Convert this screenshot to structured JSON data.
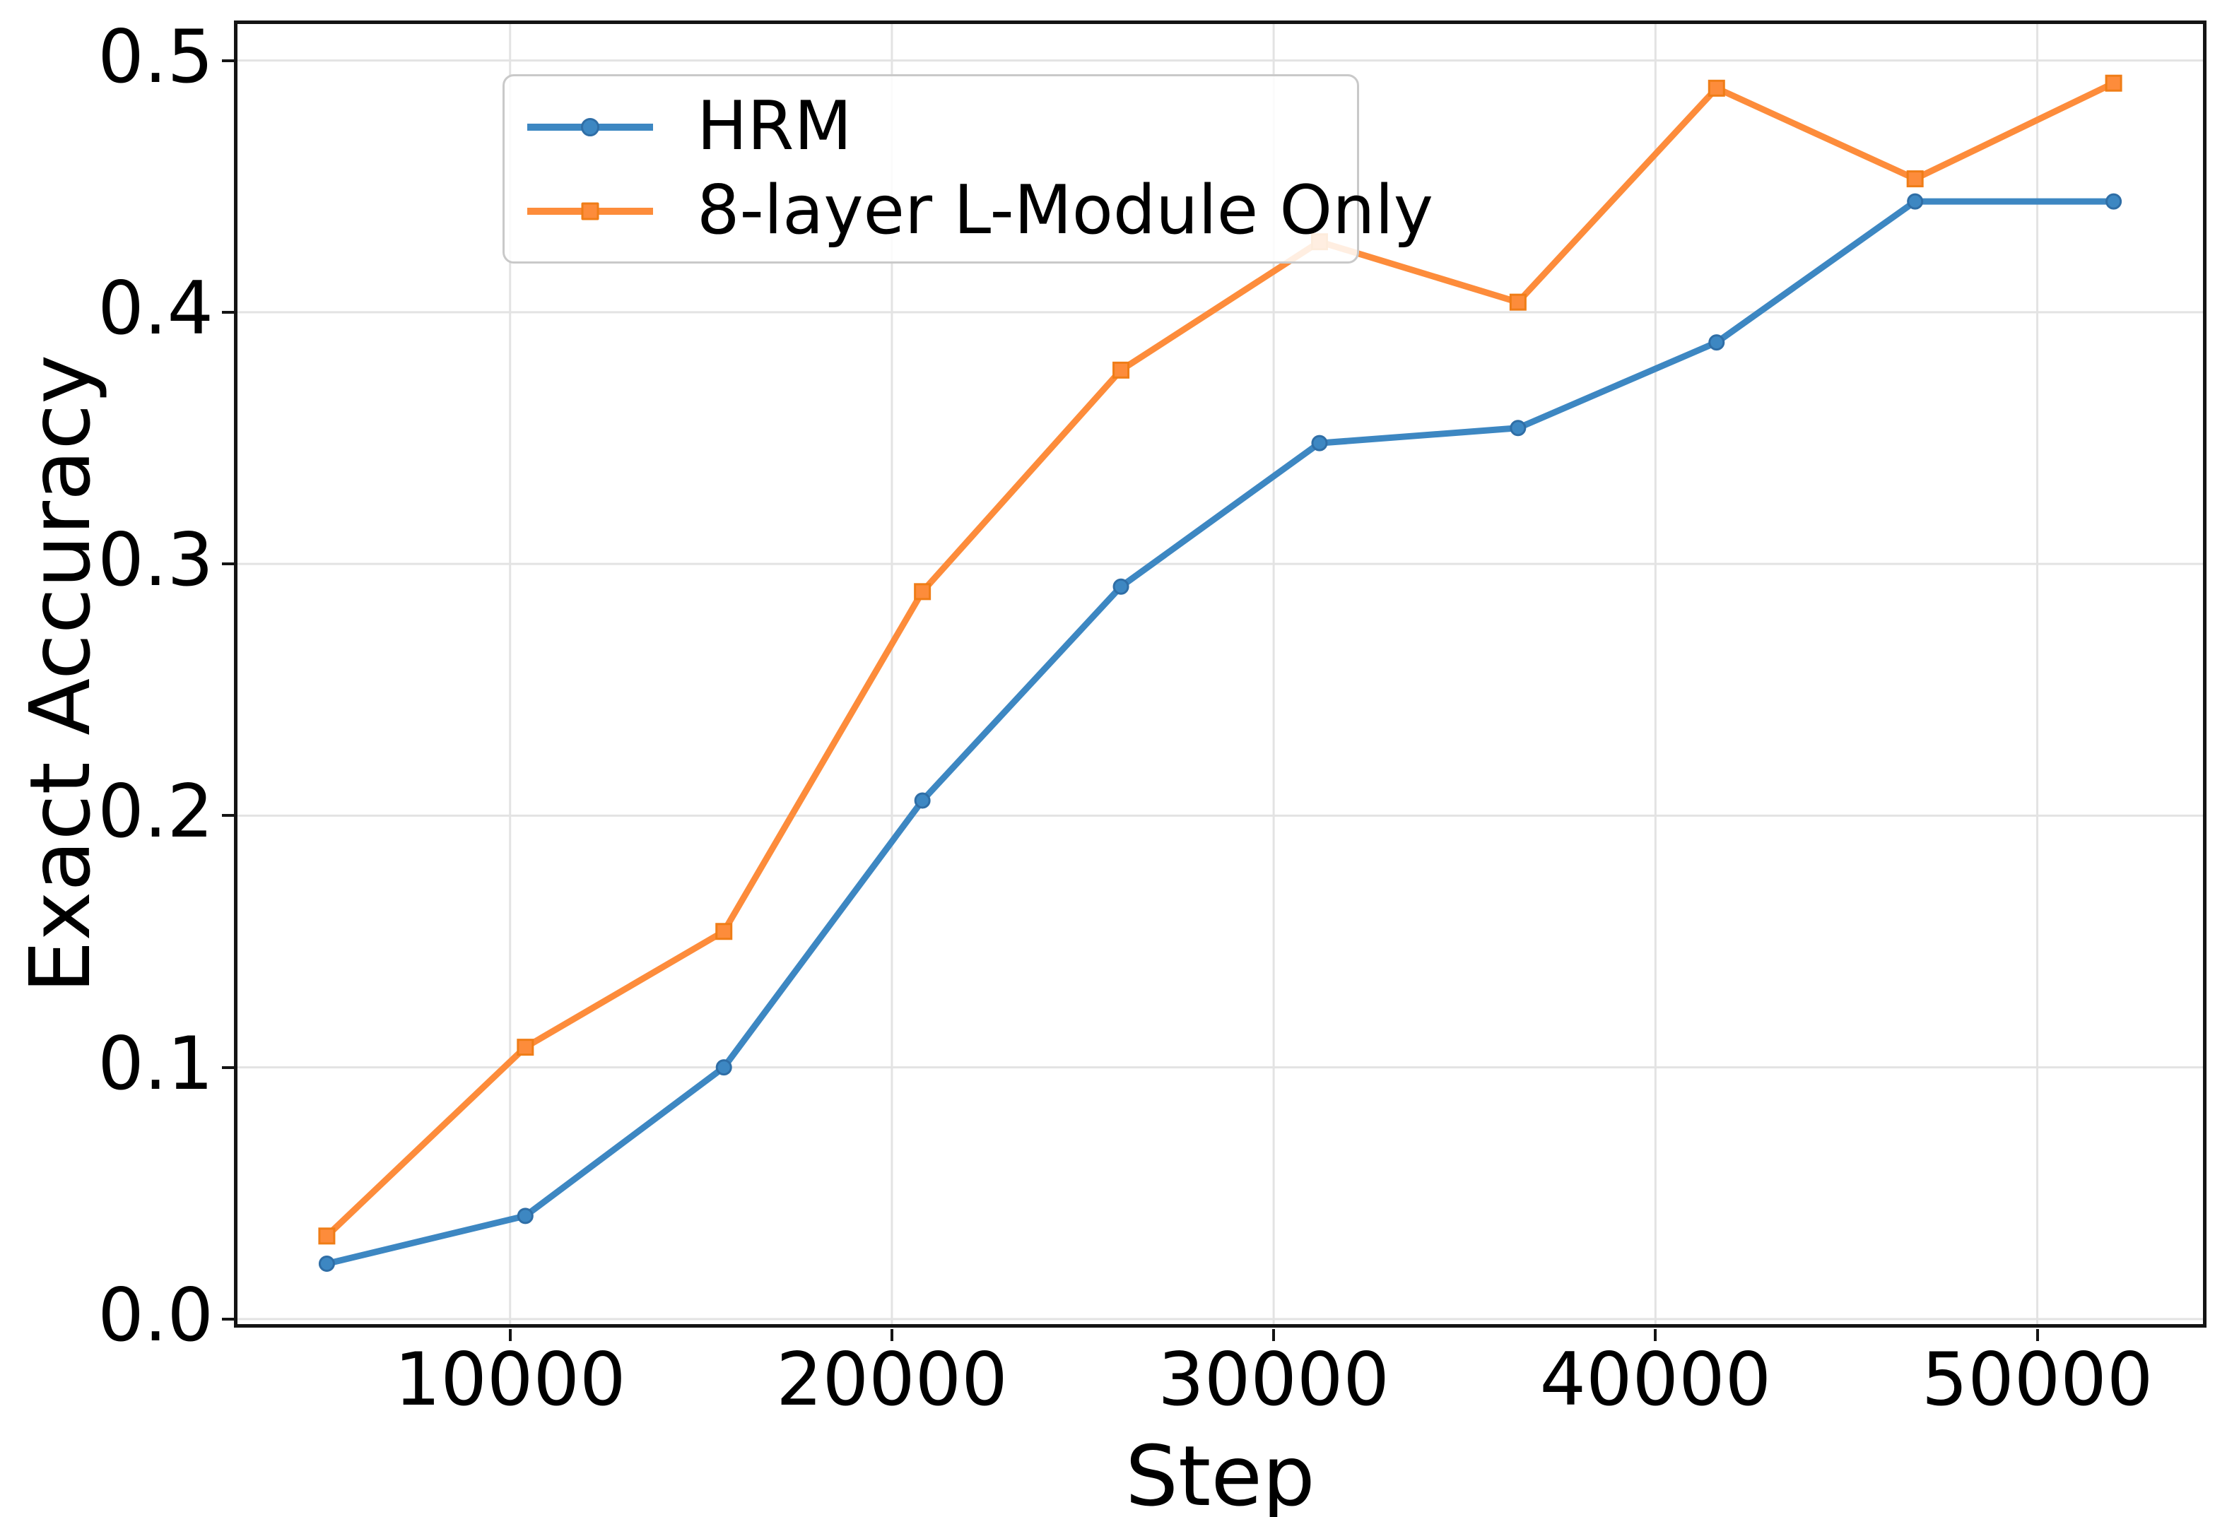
{
  "figure": {
    "background": "#ffffff",
    "spine_color": "#141414",
    "grid_color": "#e3e3e3",
    "text_color": "#000000"
  },
  "chart_data": {
    "type": "line",
    "title": "",
    "xlabel": "Step",
    "ylabel": "Exact Accuracy",
    "grid": true,
    "legend_position": "upper left",
    "xlim": [
      2860,
      54340
    ],
    "ylim": [
      -0.002,
      0.5145
    ],
    "xticks": {
      "values": [
        10000,
        20000,
        30000,
        40000,
        50000
      ],
      "labels": [
        "10000",
        "20000",
        "30000",
        "40000",
        "50000"
      ]
    },
    "yticks": {
      "values": [
        0.0,
        0.1,
        0.2,
        0.3,
        0.4,
        0.5
      ],
      "labels": [
        "0.0",
        "0.1",
        "0.2",
        "0.3",
        "0.4",
        "0.5"
      ]
    },
    "x": [
      5200,
      10400,
      15600,
      20800,
      26000,
      31200,
      36400,
      41600,
      46800,
      52000
    ],
    "series": [
      {
        "name": "HRM",
        "marker": "circle",
        "color": "#3d87c2",
        "marker_edge": "#2f6ea6",
        "values": [
          0.022,
          0.041,
          0.1,
          0.206,
          0.291,
          0.348,
          0.354,
          0.388,
          0.444,
          0.444
        ]
      },
      {
        "name": "8-layer L-Module Only",
        "marker": "square",
        "color": "#fd8c3b",
        "marker_edge": "#ef7d17",
        "values": [
          0.033,
          0.108,
          0.154,
          0.289,
          0.377,
          0.428,
          0.404,
          0.489,
          0.453,
          0.491
        ]
      }
    ]
  }
}
